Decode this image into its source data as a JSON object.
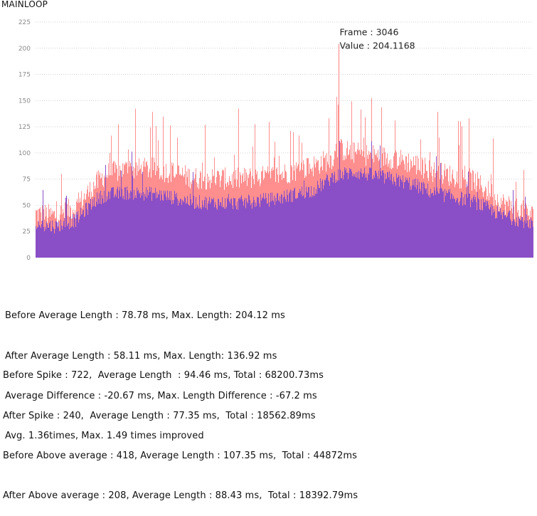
{
  "chart_data": {
    "type": "area",
    "title": "MAINLOOP",
    "xlabel": "",
    "ylabel": "",
    "ylim": [
      0,
      225
    ],
    "yticks": [
      0,
      25,
      50,
      75,
      100,
      125,
      150,
      175,
      200,
      225
    ],
    "grid": true,
    "x_range": [
      0,
      5000
    ],
    "series": [
      {
        "color": "#ff8a8a",
        "avg_length_ms": 78.78,
        "max_length_ms": 204.12,
        "profile_x": [
          0,
          200,
          400,
          600,
          700,
          900,
          1200,
          1600,
          2000,
          2400,
          2800,
          3000,
          3046,
          3200,
          3600,
          3800,
          4000,
          4400,
          4700,
          5000
        ],
        "profile_y": [
          42,
          40,
          48,
          70,
          80,
          84,
          85,
          76,
          75,
          78,
          88,
          96,
          104,
          100,
          95,
          90,
          82,
          74,
          52,
          40
        ]
      },
      {
        "color": "#8a4fc6",
        "avg_length_ms": 58.11,
        "max_length_ms": 136.92,
        "profile_x": [
          0,
          200,
          400,
          600,
          700,
          900,
          1200,
          1600,
          2000,
          2400,
          2800,
          3000,
          3200,
          3600,
          3800,
          4000,
          4400,
          4700,
          5000
        ],
        "profile_y": [
          32,
          30,
          36,
          55,
          60,
          62,
          61,
          53,
          52,
          56,
          65,
          78,
          82,
          75,
          70,
          62,
          54,
          40,
          33
        ]
      }
    ],
    "annotation": {
      "frame_label": "Frame : 3046",
      "value_label": "Value : 204.1168",
      "frame": 3046,
      "value": 204.1168
    }
  },
  "stats": {
    "block1": [
      "Before Average Length : 78.78 ms, Max. Length: 204.12 ms",
      "After Average Length : 58.11 ms, Max. Length: 136.92 ms",
      "Average Difference : -20.67 ms, Max. Length Difference : -67.2 ms",
      "Avg. 1.36times, Max. 1.49 times improved"
    ],
    "block2": [
      "Before Spike : 722,  Average Length  : 94.46 ms, Total : 68200.73ms",
      "After Spike : 240,  Average Length : 77.35 ms,  Total : 18562.89ms",
      "Before Above average : 418, Average Length : 107.35 ms,  Total : 44872ms",
      "After Above average : 208, Average Length : 88.43 ms,  Total : 18392.79ms"
    ]
  }
}
